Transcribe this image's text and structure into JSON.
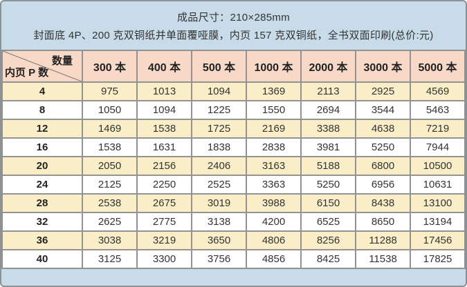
{
  "header": {
    "line1": "成品尺寸：210×285mm",
    "line2": "封面底 4P、200 克双铜纸并单面覆哑膜，内页 157 克双铜纸，全书双面印刷(总价:元)"
  },
  "table": {
    "corner": {
      "top_label": "数量",
      "bottom_label": "内页 P 数"
    },
    "columns": [
      "300 本",
      "400 本",
      "500 本",
      "1000 本",
      "2000 本",
      "3000 本",
      "5000 本"
    ],
    "rows": [
      {
        "pages": "4",
        "values": [
          "975",
          "1013",
          "1094",
          "1369",
          "2113",
          "2925",
          "4569"
        ]
      },
      {
        "pages": "8",
        "values": [
          "1050",
          "1094",
          "1225",
          "1550",
          "2694",
          "3544",
          "5463"
        ]
      },
      {
        "pages": "12",
        "values": [
          "1469",
          "1538",
          "1725",
          "2169",
          "3388",
          "4638",
          "7219"
        ]
      },
      {
        "pages": "16",
        "values": [
          "1538",
          "1631",
          "1838",
          "2838",
          "3981",
          "5250",
          "7944"
        ]
      },
      {
        "pages": "20",
        "values": [
          "2050",
          "2156",
          "2406",
          "3163",
          "5188",
          "6800",
          "10500"
        ]
      },
      {
        "pages": "24",
        "values": [
          "2125",
          "2250",
          "2525",
          "3363",
          "5250",
          "6956",
          "10631"
        ]
      },
      {
        "pages": "28",
        "values": [
          "2538",
          "2675",
          "3019",
          "3988",
          "6150",
          "8438",
          "13100"
        ]
      },
      {
        "pages": "32",
        "values": [
          "2625",
          "2775",
          "3138",
          "4200",
          "6525",
          "8650",
          "13194"
        ]
      },
      {
        "pages": "36",
        "values": [
          "3038",
          "3219",
          "3650",
          "4806",
          "8256",
          "11288",
          "17456"
        ]
      },
      {
        "pages": "40",
        "values": [
          "3125",
          "3300",
          "3756",
          "4856",
          "8425",
          "11538",
          "17825"
        ]
      }
    ]
  },
  "colors": {
    "band_background": "#c8dbe8",
    "header_row_background": "#f8d9c8",
    "stripe_row_background": "#f9eec8",
    "plain_row_background": "#ffffff",
    "grid_border": "#929292",
    "outer_border": "#8a9197",
    "text": "#333333"
  }
}
